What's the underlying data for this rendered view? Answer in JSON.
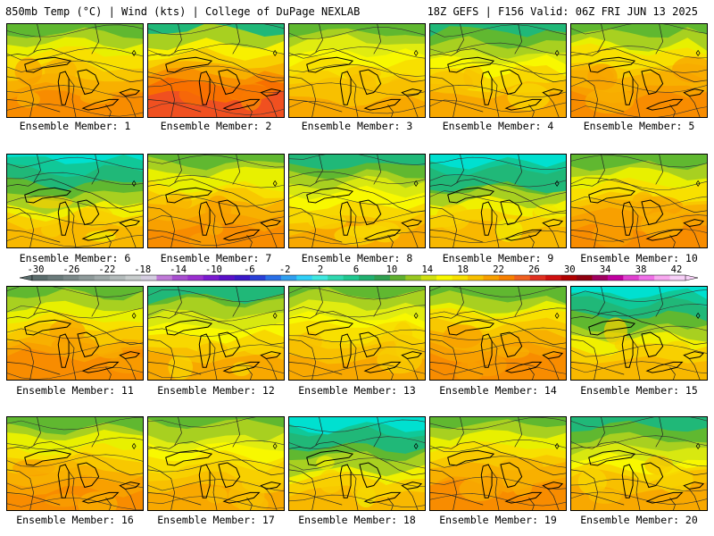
{
  "header": {
    "left": "850mb Temp (°C) | Wind (kts) | College of DuPage NEXLAB",
    "right": "18Z GEFS | F156 Valid: 06Z FRI JUN 13 2025"
  },
  "caption_prefix": "Ensemble Member: ",
  "members": [
    {
      "label": "Ensemble Member: 1",
      "tone": "warm"
    },
    {
      "label": "Ensemble Member: 2",
      "tone": "hot"
    },
    {
      "label": "Ensemble Member: 3",
      "tone": "yellow"
    },
    {
      "label": "Ensemble Member: 4",
      "tone": "mixed"
    },
    {
      "label": "Ensemble Member: 5",
      "tone": "warm"
    },
    {
      "label": "Ensemble Member: 6",
      "tone": "cool"
    },
    {
      "label": "Ensemble Member: 7",
      "tone": "warm"
    },
    {
      "label": "Ensemble Member: 8",
      "tone": "mixed"
    },
    {
      "label": "Ensemble Member: 9",
      "tone": "cool"
    },
    {
      "label": "Ensemble Member: 10",
      "tone": "warm"
    },
    {
      "label": "Ensemble Member: 11",
      "tone": "warm"
    },
    {
      "label": "Ensemble Member: 12",
      "tone": "mixed"
    },
    {
      "label": "Ensemble Member: 13",
      "tone": "yellow"
    },
    {
      "label": "Ensemble Member: 14",
      "tone": "warm"
    },
    {
      "label": "Ensemble Member: 15",
      "tone": "cool"
    },
    {
      "label": "Ensemble Member: 16",
      "tone": "warm"
    },
    {
      "label": "Ensemble Member: 17",
      "tone": "yellow"
    },
    {
      "label": "Ensemble Member: 18",
      "tone": "cool"
    },
    {
      "label": "Ensemble Member: 19",
      "tone": "warm"
    },
    {
      "label": "Ensemble Member: 20",
      "tone": "mixed"
    }
  ],
  "colorbar": {
    "labels": [
      "-30",
      "-26",
      "-22",
      "-18",
      "-14",
      "-10",
      "-6",
      "-2",
      "2",
      "6",
      "10",
      "14",
      "18",
      "22",
      "26",
      "30",
      "34",
      "38",
      "42"
    ],
    "colors": [
      "#5a6c6c",
      "#6b7b7b",
      "#7c8a8a",
      "#8e9a9a",
      "#a0aaaa",
      "#b3bbbb",
      "#c7cccc",
      "#d4cce0",
      "#c07ad8",
      "#a84fd0",
      "#9a2fd0",
      "#7a1ad0",
      "#5a10c8",
      "#3a18c8",
      "#2a40d8",
      "#2a70e8",
      "#30a0f0",
      "#30d0f8",
      "#40e8e0",
      "#30d8b0",
      "#20c890",
      "#20b070",
      "#30a050",
      "#60b030",
      "#98c820",
      "#d0e010",
      "#f8f800",
      "#f8e000",
      "#f8c000",
      "#f8a000",
      "#f88000",
      "#f06020",
      "#e03020",
      "#d01010",
      "#b00000",
      "#900010",
      "#a00060",
      "#c000a0",
      "#e040d0",
      "#f070e8",
      "#f8a8f0",
      "#f8d0f8"
    ]
  },
  "palette": {
    "cool": [
      "#00e0d0",
      "#10c898",
      "#20b878",
      "#60b830",
      "#a8d020",
      "#f0f000",
      "#f8d000",
      "#f8b800"
    ],
    "mixed": [
      "#20b878",
      "#60b830",
      "#a8d020",
      "#d8e810",
      "#f8f800",
      "#f8d800",
      "#f8c000",
      "#f8a800"
    ],
    "yellow": [
      "#60b830",
      "#a8d020",
      "#e0ec10",
      "#f8f800",
      "#f8e000",
      "#f8d000",
      "#f8c000",
      "#f8a800"
    ],
    "warm": [
      "#60b830",
      "#a8d020",
      "#e8f000",
      "#f8e000",
      "#f8c800",
      "#f8b000",
      "#f8a000",
      "#f88c00"
    ],
    "hot": [
      "#20b878",
      "#a8d020",
      "#f8f000",
      "#f8d000",
      "#f8b000",
      "#f89000",
      "#f87000",
      "#f05020"
    ]
  }
}
